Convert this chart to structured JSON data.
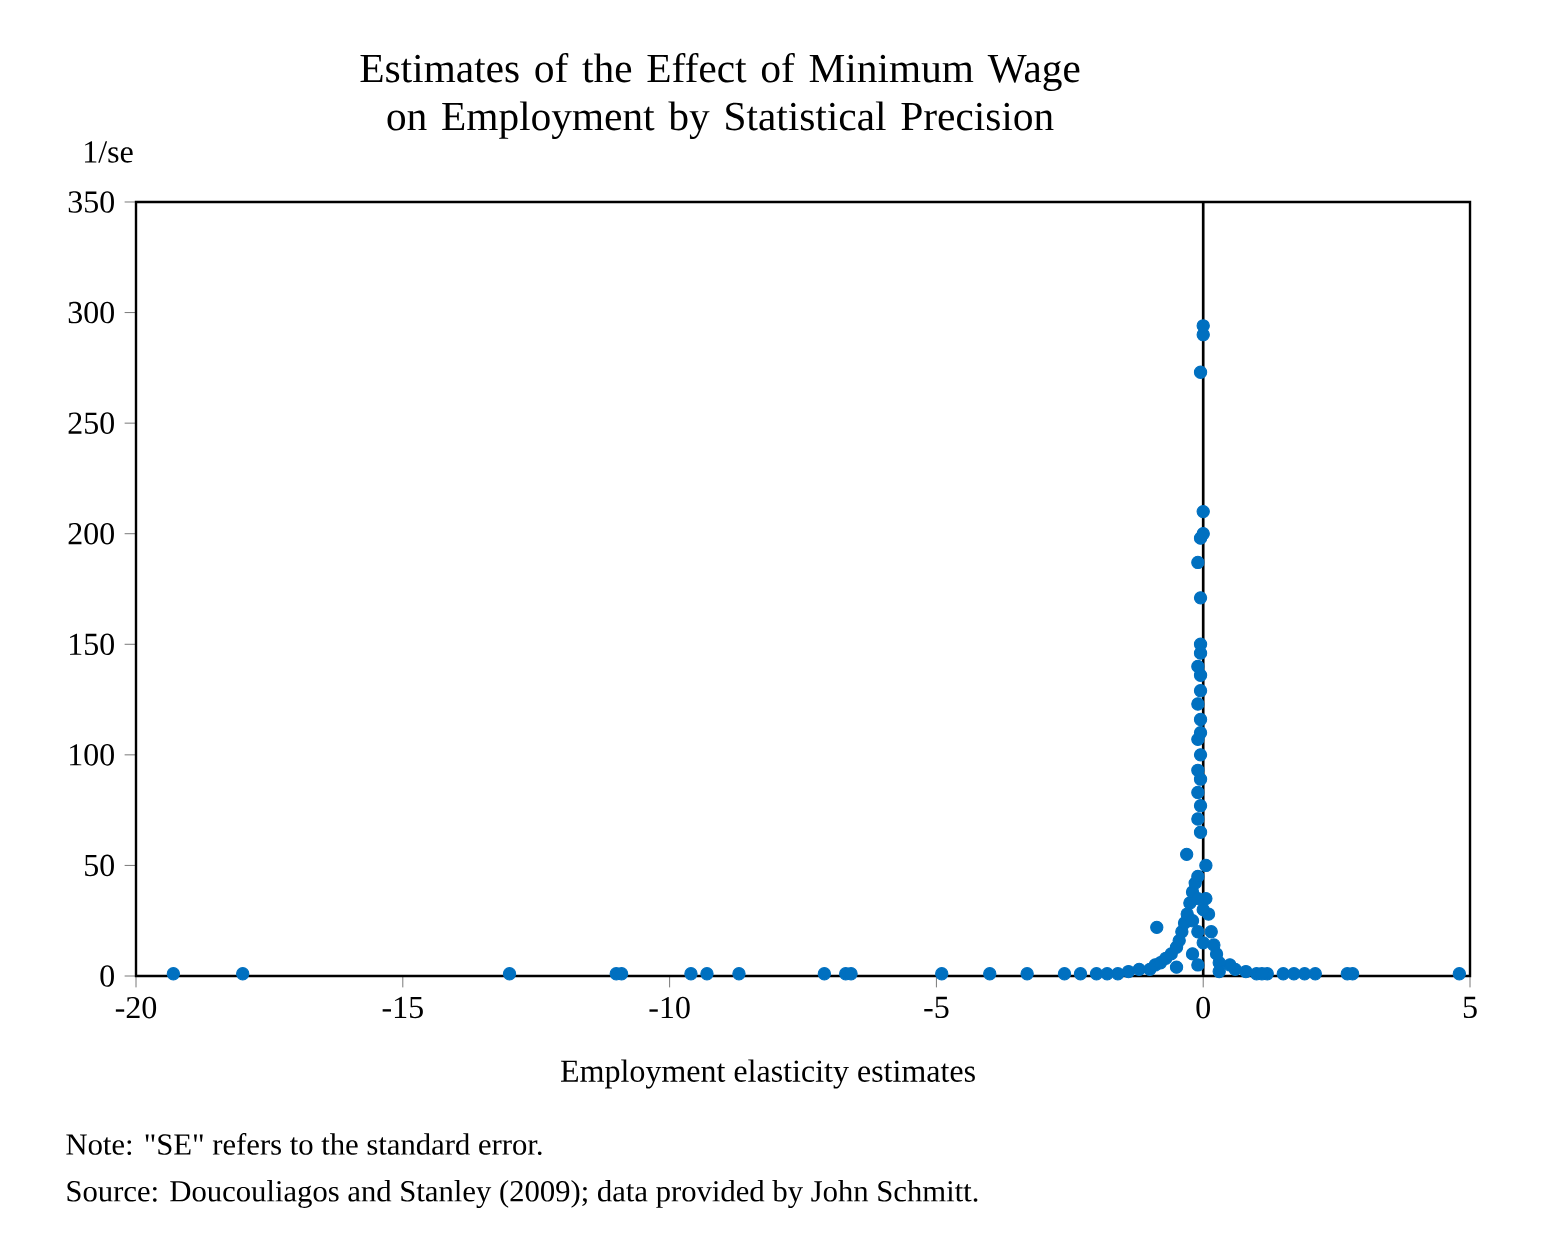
{
  "chart_data": {
    "type": "scatter",
    "title": "Estimates of the Effect of Minimum Wage on Employment by Statistical Precision",
    "xlabel": "Employment elasticity estimates",
    "ylabel": "1/se",
    "annotations": [
      "Note:  \"SE\" refers to the standard error.",
      "Source: Doucouliagos and Stanley (2009); data provided by John Schmitt."
    ],
    "xlim": [
      -20,
      5
    ],
    "xticks": [
      -20,
      -15,
      -10,
      -5,
      0,
      5
    ],
    "ylim": [
      0,
      350
    ],
    "yticks": [
      0,
      50,
      100,
      150,
      200,
      250,
      300,
      350
    ],
    "grid": false,
    "marker": "circle",
    "ref_lines": [
      {
        "axis": "x",
        "value": 0,
        "color": "#000000"
      }
    ],
    "series": [
      {
        "color": "#0070c0",
        "x": [
          -19.3,
          -18.0,
          -13.0,
          -11.0,
          -10.9,
          -9.6,
          -9.3,
          -8.7,
          -7.1,
          -6.7,
          -6.6,
          -4.9,
          -4.0,
          -3.3,
          -2.6,
          -2.3,
          -2.0,
          -1.8,
          1.0,
          1.2,
          1.5,
          1.7,
          1.9,
          2.1,
          2.7,
          2.8,
          4.8,
          -1.6,
          -1.4,
          -1.2,
          -1.0,
          -0.9,
          0.8,
          0.6,
          0.5,
          1.1,
          -0.8,
          -0.7,
          -0.6,
          -0.5,
          -0.45,
          -0.4,
          -0.35,
          -0.3,
          -0.25,
          -0.2,
          -0.15,
          0.3,
          0.25,
          0.2,
          0.15,
          0.1,
          0.05,
          -0.1,
          -0.2,
          0.0,
          -0.1,
          -0.2,
          0.0,
          -0.1,
          0.3,
          -0.5,
          -0.87,
          -0.31,
          -0.1,
          0.05,
          -0.05,
          -0.1,
          -0.05,
          -0.1,
          -0.05,
          -0.1,
          -0.05,
          -0.1,
          -0.05,
          -0.05,
          -0.1,
          -0.05,
          -0.05,
          -0.1,
          -0.05,
          -0.05,
          -0.05,
          -0.1,
          -0.05,
          0.0,
          0.0,
          -0.05,
          0.0,
          0.0
        ],
        "values": [
          1,
          1,
          1,
          1,
          1,
          1,
          1,
          1,
          1,
          1,
          1,
          1,
          1,
          1,
          1,
          1,
          1,
          1,
          1,
          1,
          1,
          1,
          1,
          1,
          1,
          1,
          1,
          1,
          2,
          3,
          3,
          5,
          2,
          3,
          5,
          1,
          6,
          8,
          10,
          13,
          16,
          20,
          24,
          28,
          33,
          38,
          42,
          6,
          10,
          14,
          20,
          28,
          35,
          5,
          10,
          15,
          20,
          25,
          30,
          35,
          2,
          4,
          22,
          55,
          45,
          50,
          65,
          71,
          77,
          83,
          89,
          93,
          100,
          107,
          110,
          116,
          123,
          129,
          136,
          140,
          146,
          150,
          171,
          187,
          198,
          200,
          210,
          273,
          290,
          294
        ]
      }
    ]
  }
}
